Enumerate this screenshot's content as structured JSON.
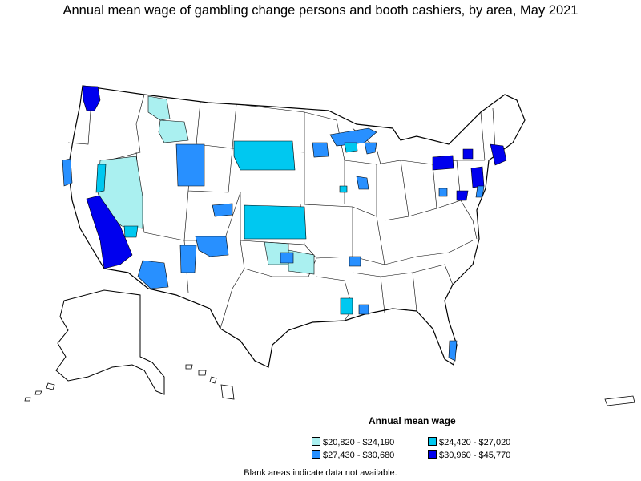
{
  "title": "Annual mean wage of gambling change persons and booth cashiers, by area, May 2021",
  "legend": {
    "title": "Annual mean wage",
    "items": [
      {
        "label": "$20,820 - $24,190",
        "color": "#aaf0f0"
      },
      {
        "label": "$24,420 - $27,020",
        "color": "#00c8f0"
      },
      {
        "label": "$27,430 - $30,680",
        "color": "#2890ff"
      },
      {
        "label": "$30,960 - $45,770",
        "color": "#0000ee"
      }
    ]
  },
  "footnote": "Blank areas indicate data not available.",
  "colors": {
    "background": "#ffffff",
    "border": "#000000",
    "no_data": "#ffffff"
  }
}
